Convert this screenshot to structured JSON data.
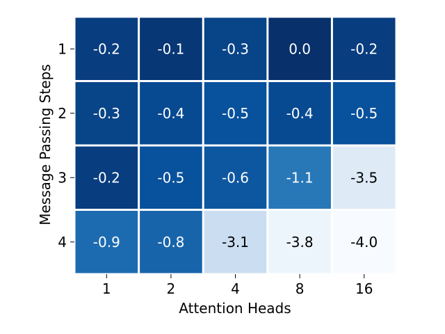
{
  "chart_data": {
    "type": "heatmap",
    "title": "",
    "xlabel": "Attention Heads",
    "ylabel": "Message Passing Steps",
    "x_categories": [
      "1",
      "2",
      "4",
      "8",
      "16"
    ],
    "y_categories": [
      "1",
      "2",
      "3",
      "4"
    ],
    "values": [
      [
        -0.2,
        -0.1,
        -0.3,
        0.0,
        -0.2
      ],
      [
        -0.3,
        -0.4,
        -0.5,
        -0.4,
        -0.5
      ],
      [
        -0.2,
        -0.5,
        -0.6,
        -1.1,
        -3.5
      ],
      [
        -0.9,
        -0.8,
        -3.1,
        -3.8,
        -4.0
      ]
    ],
    "value_labels": [
      [
        "-0.2",
        "-0.1",
        "-0.3",
        "0.0",
        "-0.2"
      ],
      [
        "-0.3",
        "-0.4",
        "-0.5",
        "-0.4",
        "-0.5"
      ],
      [
        "-0.2",
        "-0.5",
        "-0.6",
        "-1.1",
        "-3.5"
      ],
      [
        "-0.9",
        "-0.8",
        "-3.1",
        "-3.8",
        "-4.0"
      ]
    ],
    "colormap": "Blues_reversed",
    "vmin": -4.0,
    "vmax": 0.0,
    "colorbar": false,
    "grid_color": "#ffffff"
  }
}
